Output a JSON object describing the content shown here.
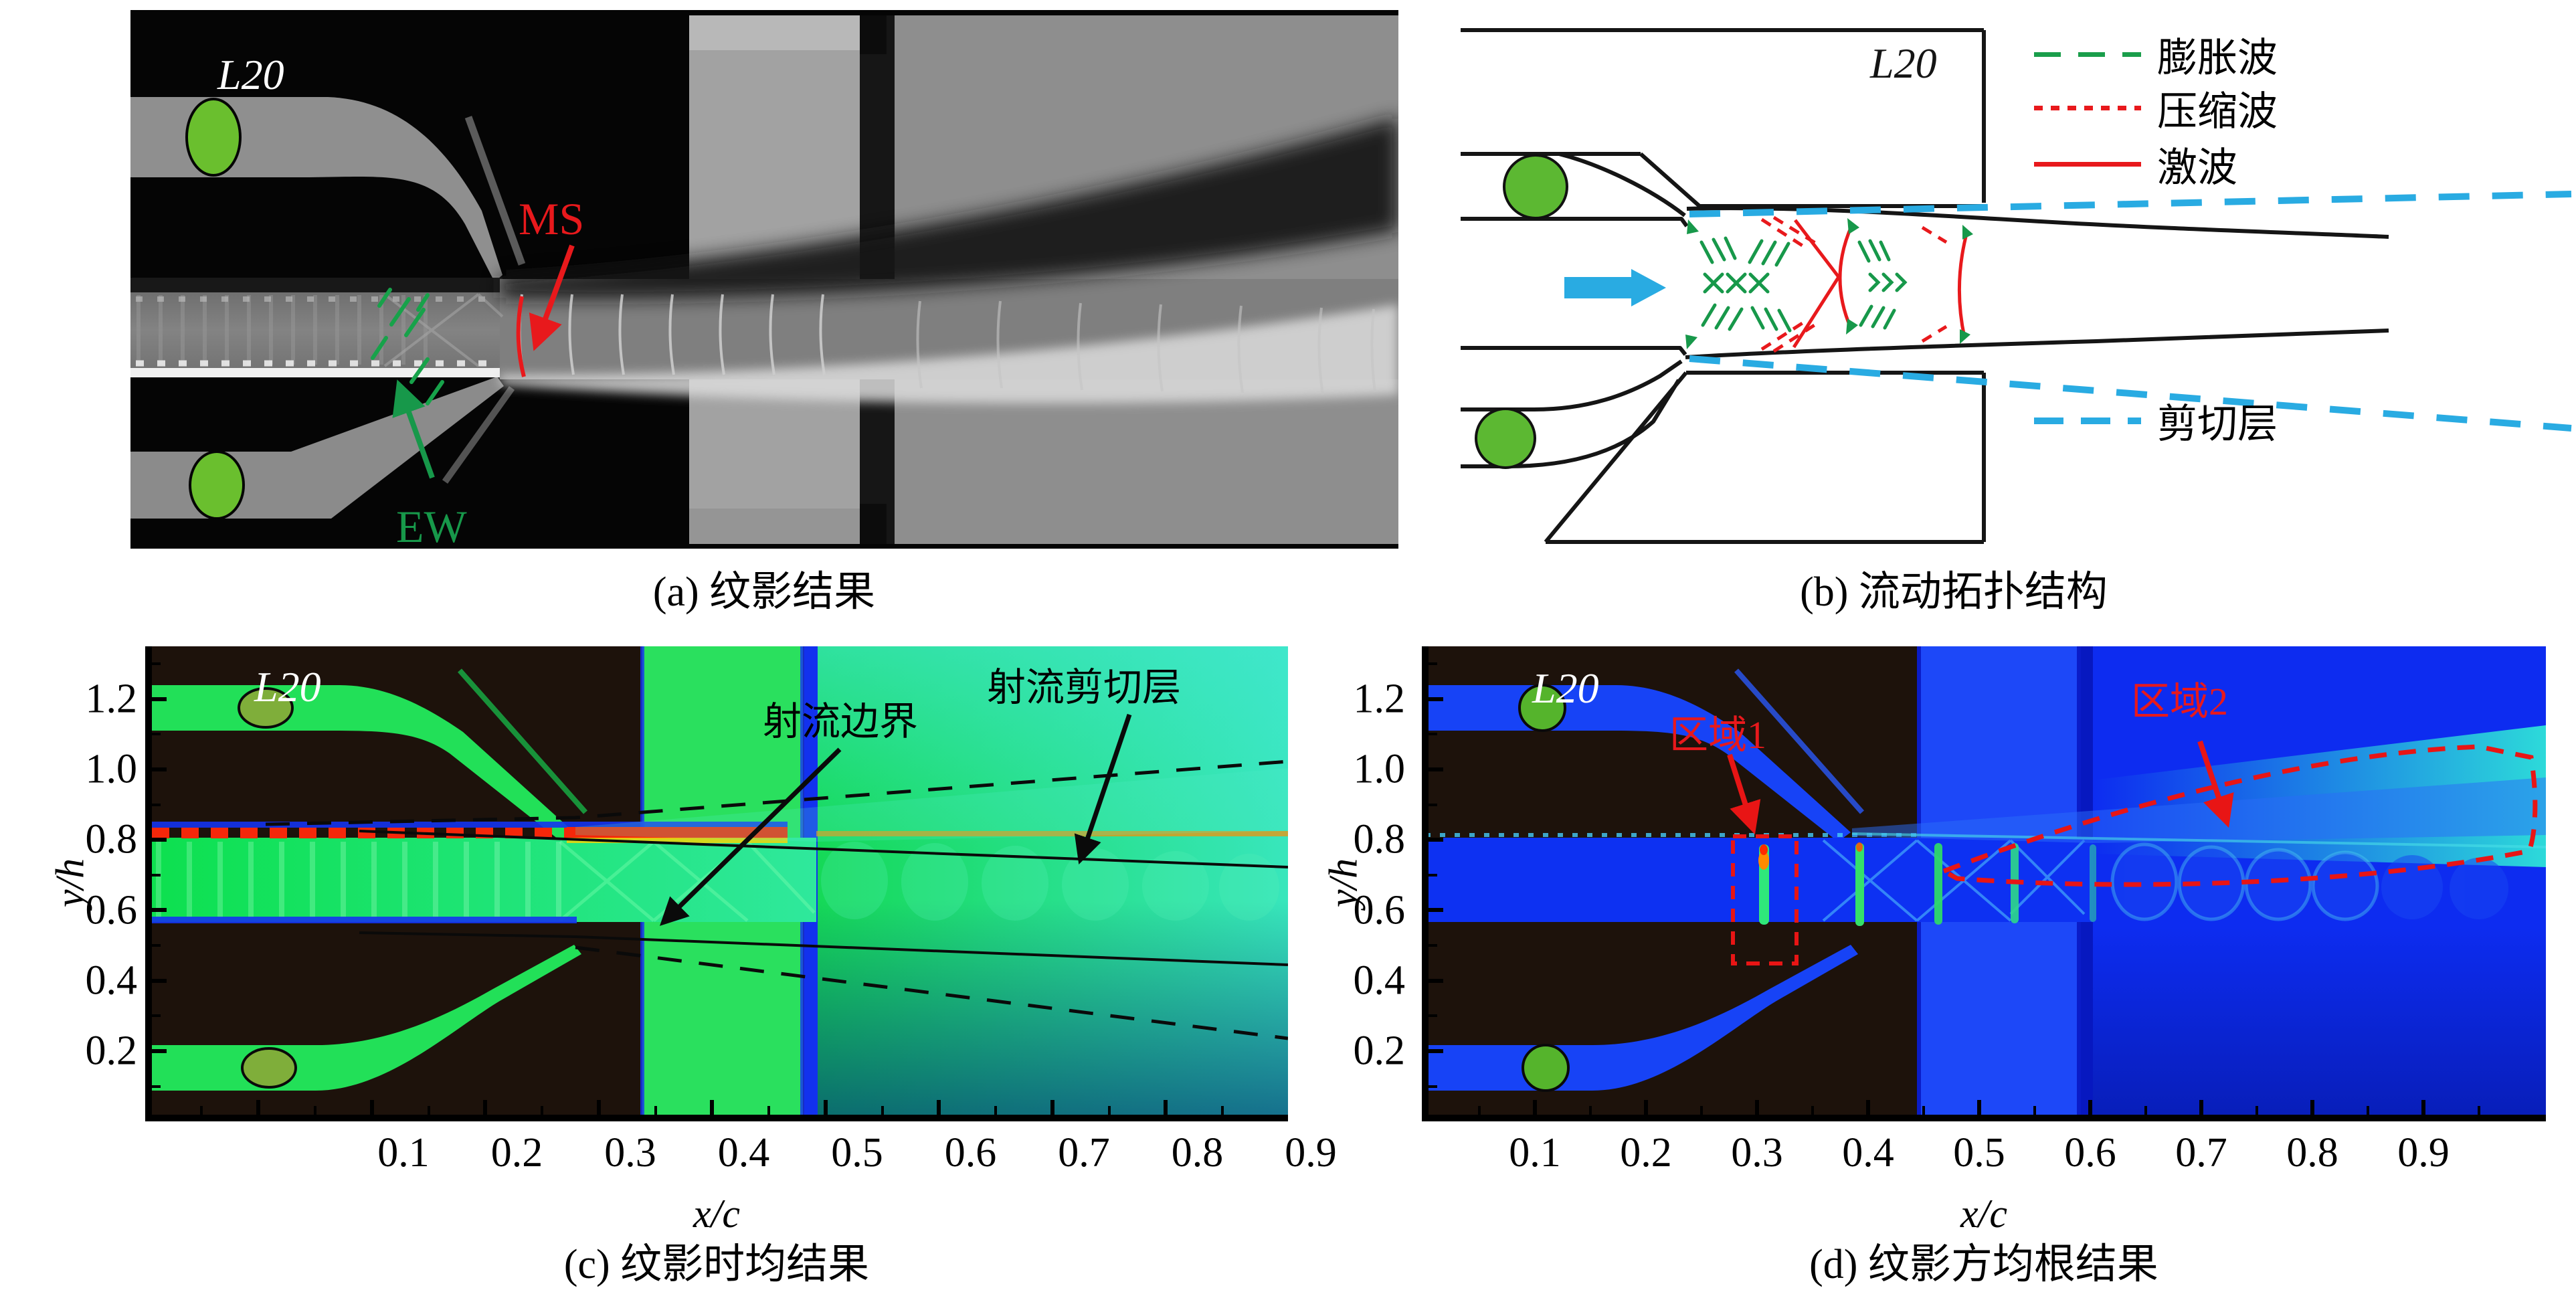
{
  "figure": {
    "panel_a": {
      "caption": "(a) 纹影结果",
      "inset_label": "L20",
      "annotation_ms": "MS",
      "annotation_ew": "EW"
    },
    "panel_b": {
      "caption": "(b) 流动拓扑结构",
      "inset_label": "L20",
      "legend": [
        {
          "label": "膨胀波",
          "style": "dashed",
          "color": "#1a9e4b"
        },
        {
          "label": "压缩波",
          "style": "dotted",
          "color": "#e8191c"
        },
        {
          "label": "激波",
          "style": "solid",
          "color": "#e8191c"
        },
        {
          "label": "剪切层",
          "style": "dashed",
          "color": "#29abe2"
        }
      ]
    },
    "panel_c": {
      "caption": "(c) 纹影时均结果",
      "inset_label": "L20",
      "annotation_boundary": "射流边界",
      "annotation_shear": "射流剪切层"
    },
    "panel_d": {
      "caption": "(d) 纹影方均根结果",
      "inset_label": "L20",
      "annotation_region1": "区域1",
      "annotation_region2": "区域2"
    },
    "colors": {
      "shock_red": "#e8191c",
      "expansion_green": "#1a9e4b",
      "shear_blue": "#29abe2",
      "insert_circle_green": "#5cb832"
    }
  },
  "chart_data": [
    {
      "id": "c",
      "type": "heatmap",
      "title": "(c) 纹影时均结果",
      "xlabel": "x/c",
      "ylabel": "y/h",
      "x_ticks": [
        0.1,
        0.2,
        0.3,
        0.4,
        0.5,
        0.6,
        0.7,
        0.8,
        0.9
      ],
      "x_tick_labels": [
        "0.1",
        "0.2",
        "0.3",
        "0.4",
        "0.5",
        "0.6",
        "0.7",
        "0.8",
        "0.9"
      ],
      "y_ticks": [
        1.2,
        1.0,
        0.8,
        0.6,
        0.4,
        0.2
      ],
      "y_tick_labels": [
        "1.2",
        "1.0",
        "0.8",
        "0.6",
        "0.4",
        "0.2"
      ],
      "xlim": [
        0,
        1.01
      ],
      "ylim": [
        0,
        1.35
      ],
      "grid": false,
      "legend_position": "none",
      "colormap": "rainbow",
      "inset_label": "L20",
      "annotations": [
        "射流边界",
        "射流剪切层"
      ],
      "features": [
        "时均纹影云图：射流位于 y/h≈0.5–0.8，绿色高亮",
        "射流上边界处红色高梯度条带",
        "黑色实线标记射流边界，黑色虚线标记射流剪切层外缘",
        "上剪切层虚线向右上扩展，下剪切层虚线向右下扩展",
        "x/c≈0.42–0.55 处为亮绿色窗框条带及蓝色竖线"
      ]
    },
    {
      "id": "d",
      "type": "heatmap",
      "title": "(d) 纹影方均根结果",
      "xlabel": "x/c",
      "ylabel": "y/h",
      "x_ticks": [
        0.1,
        0.2,
        0.3,
        0.4,
        0.5,
        0.6,
        0.7,
        0.8,
        0.9
      ],
      "x_tick_labels": [
        "0.1",
        "0.2",
        "0.3",
        "0.4",
        "0.5",
        "0.6",
        "0.7",
        "0.8",
        "0.9"
      ],
      "y_ticks": [
        1.2,
        1.0,
        0.8,
        0.6,
        0.4,
        0.2
      ],
      "y_tick_labels": [
        "1.2",
        "1.0",
        "0.8",
        "0.6",
        "0.4",
        "0.2"
      ],
      "xlim": [
        0,
        1.01
      ],
      "ylim": [
        0,
        1.35
      ],
      "grid": false,
      "legend_position": "none",
      "colormap": "rainbow",
      "inset_label": "L20",
      "annotations": [
        "区域1",
        "区域2"
      ],
      "features": [
        "方均根纹影云图：整体为蓝色低脉动背景",
        "区域1：x/c≈0.28–0.33 红色虚线矩形内的绿色/红色高脉动竖条",
        "区域2：x/c≈0.45–1.0 上剪切层的大范围红色虚线包络区",
        "激波串处出现周期性绿色竖条纹",
        "右侧上剪切层呈青色高脉动楔形区"
      ]
    }
  ]
}
